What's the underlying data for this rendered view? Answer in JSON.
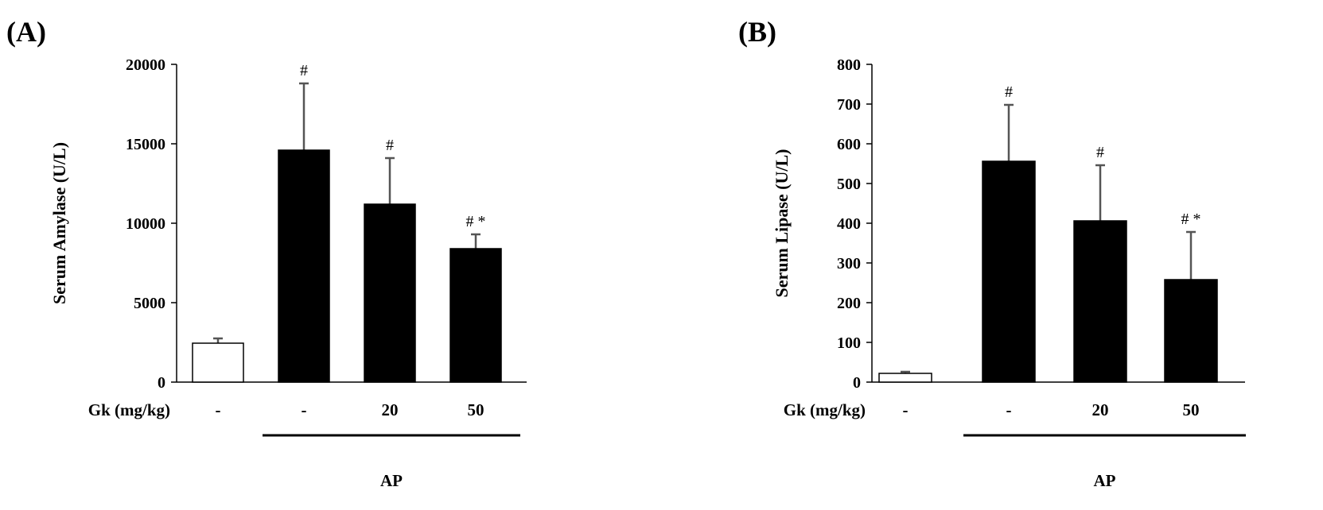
{
  "chart_data": [
    {
      "type": "bar",
      "panel_label": "(A)",
      "ylabel": "Serum Amylase (U/L)",
      "ylim": [
        0,
        20000
      ],
      "yticks": [
        0,
        5000,
        10000,
        15000,
        20000
      ],
      "xlabel_row_label": "Gk (mg/kg)",
      "categories": [
        "-",
        "-",
        "20",
        "50"
      ],
      "values": [
        2450,
        14600,
        11200,
        8400
      ],
      "errors": [
        300,
        4200,
        2900,
        900
      ],
      "significance": [
        "",
        "#",
        "#",
        "# *"
      ],
      "bar_colors": [
        "#ffffff",
        "#000000",
        "#000000",
        "#000000"
      ],
      "group_label": "AP",
      "group_range": [
        1,
        3
      ],
      "grid": false
    },
    {
      "type": "bar",
      "panel_label": "(B)",
      "ylabel": "Serum Lipase (U/L)",
      "ylim": [
        0,
        800
      ],
      "yticks": [
        0,
        100,
        200,
        300,
        400,
        500,
        600,
        700,
        800
      ],
      "xlabel_row_label": "Gk (mg/kg)",
      "categories": [
        "-",
        "-",
        "20",
        "50"
      ],
      "values": [
        22,
        556,
        406,
        258
      ],
      "errors": [
        4,
        142,
        140,
        120
      ],
      "significance": [
        "",
        "#",
        "#",
        "# *"
      ],
      "bar_colors": [
        "#ffffff",
        "#000000",
        "#000000",
        "#000000"
      ],
      "group_label": "AP",
      "group_range": [
        1,
        3
      ],
      "grid": false
    }
  ]
}
